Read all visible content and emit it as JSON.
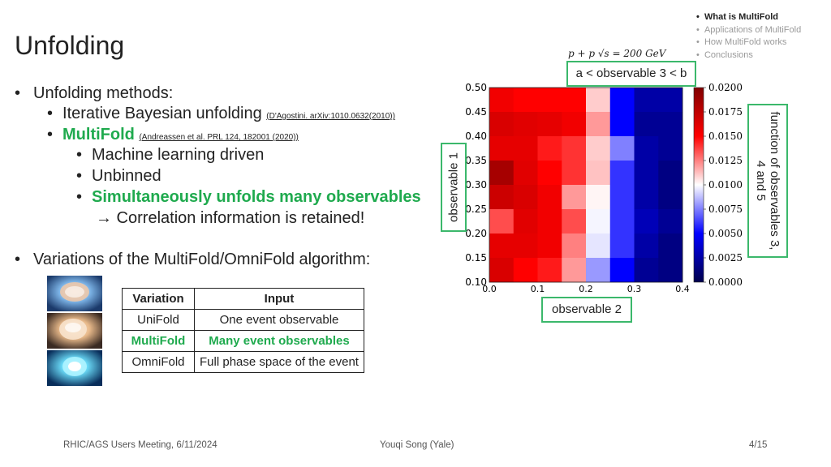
{
  "slide": {
    "title": "Unfolding",
    "toc": [
      "What is MultiFold",
      "Applications of MultiFold",
      "How MultiFold works",
      "Conclusions"
    ],
    "bullets": {
      "b1": "Unfolding methods:",
      "b1a_text": "Iterative Bayesian unfolding",
      "b1a_ref": "(D'Agostini. arXiv:1010.0632(2010))",
      "b1b_text": "MultiFold",
      "b1b_ref": "(Andreassen et al. PRL 124, 182001 (2020))",
      "sub1": "Machine learning driven",
      "sub2": "Unbinned",
      "sub3": "Simultaneously unfolds many observables",
      "sub3_cont": "→ Correlation information is retained!",
      "b2": "Variations of the MultiFold/OmniFold algorithm:"
    },
    "table": {
      "headers": [
        "Variation",
        "Input"
      ],
      "rows": [
        [
          "UniFold",
          "One event observable"
        ],
        [
          "MultiFold",
          "Many event observables"
        ],
        [
          "OmniFold",
          "Full phase space of the event"
        ]
      ]
    },
    "footer": {
      "left": "RHIC/AGS Users Meeting, 6/11/2024",
      "center": "Youqi Song (Yale)",
      "right": "4/15"
    }
  },
  "figure": {
    "header": "p + p  √s = 200 GeV",
    "cut_label": "a < observable 3 < b",
    "xlabel": "observable 2",
    "ylabel": "observable 1",
    "colorbar_label": "function of observables 3, 4 and 5",
    "colors": {
      "accent_green": "#1faa4e",
      "box_green": "#3bb86b"
    }
  },
  "chart_data": {
    "type": "heatmap",
    "x_edges": [
      0.0,
      0.05,
      0.1,
      0.15,
      0.2,
      0.25,
      0.3,
      0.35,
      0.4
    ],
    "y_edges": [
      0.1,
      0.15,
      0.2,
      0.25,
      0.3,
      0.35,
      0.4,
      0.45,
      0.5
    ],
    "x_ticks": [
      "0.0",
      "0.1",
      "0.2",
      "0.3",
      "0.4"
    ],
    "y_ticks": [
      "0.10",
      "0.15",
      "0.20",
      "0.25",
      "0.30",
      "0.35",
      "0.40",
      "0.45",
      "0.50"
    ],
    "colorbar_ticks": [
      "0.0000",
      "0.0025",
      "0.0050",
      "0.0075",
      "0.0100",
      "0.0125",
      "0.0150",
      "0.0175",
      "0.0200"
    ],
    "zlim": [
      0.0,
      0.02
    ],
    "colormap": "seismic",
    "values_top_to_bottom": [
      [
        0.0155,
        0.015,
        0.015,
        0.015,
        0.011,
        0.005,
        0.0025,
        0.0025
      ],
      [
        0.0165,
        0.0162,
        0.016,
        0.0155,
        0.012,
        0.005,
        0.002,
        0.002
      ],
      [
        0.016,
        0.016,
        0.0145,
        0.014,
        0.011,
        0.0075,
        0.0025,
        0.002
      ],
      [
        0.0185,
        0.0162,
        0.015,
        0.014,
        0.0112,
        0.006,
        0.0025,
        0.0015
      ],
      [
        0.017,
        0.0165,
        0.0155,
        0.012,
        0.0102,
        0.006,
        0.0025,
        0.0015
      ],
      [
        0.0135,
        0.0162,
        0.0155,
        0.0135,
        0.0098,
        0.006,
        0.003,
        0.002
      ],
      [
        0.016,
        0.016,
        0.0155,
        0.0125,
        0.0095,
        0.006,
        0.0025,
        0.0015
      ],
      [
        0.0165,
        0.015,
        0.0145,
        0.012,
        0.008,
        0.005,
        0.002,
        0.0015
      ]
    ]
  }
}
